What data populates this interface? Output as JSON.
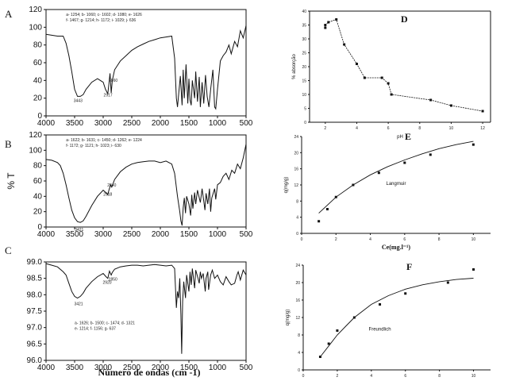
{
  "chart_data": [
    {
      "id": "A",
      "type": "line",
      "panel_letter": "A",
      "xlim": [
        4000,
        500
      ],
      "xticks": [
        "4000",
        "3500",
        "3000",
        "2500",
        "2000",
        "1500",
        "1000",
        "500"
      ],
      "ylim": [
        0,
        120
      ],
      "yticks": [
        "0",
        "20",
        "40",
        "60",
        "80",
        "100",
        "120"
      ],
      "annotation_lines": [
        "a- 1254; b- 1060; c- 1602; d- 1080; e- 1626",
        "f- 1467; g- 1214; h- 1172; i- 1029; j- 636"
      ],
      "peak_labels": [
        {
          "text": "3443",
          "x": 3440,
          "y": 22
        },
        {
          "text": "2917",
          "x": 2915,
          "y": 28
        },
        {
          "text": "2860",
          "x": 2825,
          "y": 45
        }
      ],
      "series": [
        {
          "x": [
            4000,
            3900,
            3800,
            3700,
            3650,
            3600,
            3550,
            3500,
            3450,
            3400,
            3350,
            3300,
            3200,
            3100,
            3000,
            2960,
            2920,
            2900,
            2880,
            2860,
            2840,
            2800,
            2700,
            2600,
            2500,
            2400,
            2300,
            2200,
            2100,
            2000,
            1900,
            1800,
            1750,
            1720,
            1700,
            1650,
            1620,
            1600,
            1580,
            1550,
            1520,
            1500,
            1480,
            1460,
            1440,
            1400,
            1380,
            1350,
            1320,
            1300,
            1270,
            1240,
            1210,
            1180,
            1150,
            1120,
            1080,
            1050,
            1030,
            1000,
            950,
            900,
            850,
            800,
            760,
            700,
            650,
            600,
            550,
            500
          ],
          "y": [
            92,
            91,
            90,
            90,
            82,
            68,
            50,
            30,
            22,
            22,
            24,
            30,
            38,
            42,
            38,
            30,
            25,
            36,
            48,
            26,
            40,
            52,
            62,
            68,
            74,
            78,
            81,
            84,
            86,
            88,
            89,
            90,
            65,
            20,
            10,
            45,
            12,
            52,
            20,
            58,
            14,
            42,
            18,
            12,
            40,
            20,
            50,
            16,
            44,
            10,
            38,
            14,
            46,
            22,
            10,
            30,
            52,
            10,
            8,
            30,
            62,
            68,
            72,
            80,
            70,
            84,
            78,
            96,
            88,
            102
          ]
        }
      ]
    },
    {
      "id": "B",
      "type": "line",
      "panel_letter": "B",
      "xlim": [
        4000,
        500
      ],
      "xticks": [
        "4000",
        "3500",
        "3000",
        "2500",
        "2000",
        "1500",
        "1000",
        "500"
      ],
      "ylim": [
        0,
        120
      ],
      "yticks": [
        "0",
        "20",
        "40",
        "60",
        "80",
        "100",
        "120"
      ],
      "ylabel": "% T",
      "annotation_lines": [
        "a- 1622; b- 1631; c- 1450; d- 1262; e- 1224",
        "f- 1172; g- 1121; h- 1023; i- 630"
      ],
      "peak_labels": [
        {
          "text": "3421",
          "x": 3420,
          "y": 2
        },
        {
          "text": "2840",
          "x": 2850,
          "y": 60
        },
        {
          "text": "2918",
          "x": 2920,
          "y": 48
        }
      ],
      "series": [
        {
          "x": [
            4000,
            3900,
            3800,
            3750,
            3700,
            3650,
            3600,
            3550,
            3500,
            3450,
            3400,
            3350,
            3300,
            3200,
            3100,
            3000,
            2940,
            2920,
            2900,
            2870,
            2850,
            2830,
            2800,
            2700,
            2600,
            2500,
            2400,
            2300,
            2200,
            2100,
            2000,
            1900,
            1800,
            1750,
            1700,
            1660,
            1640,
            1620,
            1600,
            1580,
            1560,
            1540,
            1500,
            1470,
            1450,
            1430,
            1400,
            1380,
            1350,
            1300,
            1270,
            1240,
            1220,
            1200,
            1170,
            1140,
            1120,
            1100,
            1050,
            1030,
            1000,
            950,
            900,
            850,
            800,
            750,
            700,
            650,
            600,
            550,
            500
          ],
          "y": [
            88,
            87,
            84,
            80,
            70,
            55,
            38,
            22,
            12,
            7,
            6,
            8,
            14,
            28,
            40,
            48,
            44,
            42,
            48,
            55,
            52,
            56,
            62,
            72,
            78,
            82,
            84,
            85,
            86,
            86,
            84,
            86,
            82,
            70,
            40,
            20,
            8,
            2,
            25,
            38,
            18,
            40,
            30,
            15,
            42,
            24,
            45,
            30,
            48,
            32,
            50,
            34,
            22,
            44,
            30,
            50,
            20,
            38,
            50,
            36,
            55,
            58,
            66,
            70,
            62,
            74,
            70,
            82,
            76,
            90,
            108
          ]
        }
      ]
    },
    {
      "id": "C",
      "type": "line",
      "panel_letter": "C",
      "xlim": [
        4000,
        500
      ],
      "xticks": [
        "4000",
        "3500",
        "3000",
        "2500",
        "2000",
        "1500",
        "1000",
        "500"
      ],
      "ylim": [
        96.0,
        99.0
      ],
      "yticks": [
        "96.0",
        "96.5",
        "97.0",
        "97.5",
        "98.0",
        "98.5",
        "99.0"
      ],
      "annotation_lines": [
        "a- 1626; b- 1500; c- 1474; d- 1321",
        "e- 1214; f- 1156; g- 637"
      ],
      "peak_labels": [
        {
          "text": "3421",
          "x": 3430,
          "y": 97.85
        },
        {
          "text": "2920",
          "x": 2930,
          "y": 98.5
        },
        {
          "text": "2850",
          "x": 2830,
          "y": 98.6
        }
      ],
      "series": [
        {
          "x": [
            4000,
            3900,
            3800,
            3700,
            3650,
            3600,
            3550,
            3500,
            3450,
            3400,
            3350,
            3300,
            3200,
            3100,
            3000,
            2950,
            2920,
            2890,
            2860,
            2840,
            2800,
            2700,
            2600,
            2500,
            2400,
            2300,
            2200,
            2100,
            2000,
            1900,
            1800,
            1750,
            1720,
            1700,
            1680,
            1660,
            1640,
            1626,
            1610,
            1590,
            1560,
            1540,
            1500,
            1480,
            1460,
            1440,
            1400,
            1380,
            1340,
            1320,
            1300,
            1280,
            1250,
            1214,
            1200,
            1170,
            1156,
            1120,
            1090,
            1050,
            1000,
            950,
            900,
            850,
            800,
            760,
            700,
            660,
            637,
            600,
            550,
            500
          ],
          "y": [
            98.95,
            98.9,
            98.85,
            98.7,
            98.6,
            98.35,
            98.1,
            97.95,
            97.9,
            97.95,
            98.05,
            98.2,
            98.4,
            98.55,
            98.65,
            98.55,
            98.5,
            98.72,
            98.6,
            98.68,
            98.78,
            98.85,
            98.88,
            98.9,
            98.9,
            98.88,
            98.9,
            98.92,
            98.9,
            98.88,
            98.9,
            98.8,
            97.6,
            98.1,
            97.9,
            98.5,
            97.4,
            96.2,
            97.8,
            98.4,
            97.9,
            98.6,
            98.1,
            98.7,
            98.3,
            98.8,
            98.2,
            98.75,
            98.5,
            98.35,
            98.7,
            98.5,
            98.65,
            98.1,
            98.5,
            98.7,
            98.15,
            98.6,
            98.75,
            98.5,
            98.6,
            98.4,
            98.3,
            98.55,
            98.4,
            98.3,
            98.35,
            98.6,
            98.7,
            98.45,
            98.75,
            98.6
          ]
        }
      ]
    },
    {
      "id": "D",
      "type": "line",
      "panel_letter": "D",
      "xlabel": "pH",
      "ylabel": "% absorção",
      "xlim": [
        1,
        12.5
      ],
      "xticks": [
        "2",
        "4",
        "6",
        "8",
        "10",
        "12"
      ],
      "ylim": [
        0,
        40
      ],
      "yticks": [
        "0",
        "5",
        "10",
        "15",
        "20",
        "25",
        "30",
        "35",
        "40"
      ],
      "series": [
        {
          "x": [
            2,
            2,
            2.2,
            2.7,
            3.2,
            4,
            4.5,
            5.6,
            6,
            6.2,
            8.7,
            10,
            12
          ],
          "y": [
            34,
            35,
            36,
            37,
            28,
            21,
            16,
            16,
            14,
            10,
            8,
            6,
            4
          ]
        }
      ]
    },
    {
      "id": "E",
      "type": "scatter",
      "panel_letter": "E",
      "xlabel": "Ce(mg.l⁻¹)",
      "ylabel": "q(mg/g)",
      "curve_label": "Langmuir",
      "xlim": [
        0,
        11
      ],
      "xticks": [
        "0",
        "2",
        "4",
        "6",
        "8",
        "10"
      ],
      "ylim": [
        0,
        24
      ],
      "yticks": [
        "0",
        "4",
        "8",
        "12",
        "16",
        "20",
        "24"
      ],
      "points": {
        "x": [
          1,
          1.5,
          2,
          3,
          4.5,
          6,
          7.5,
          10
        ],
        "y": [
          3,
          6,
          9,
          12,
          15,
          17.5,
          19.5,
          22
        ]
      },
      "fit": {
        "x": [
          1,
          2,
          3,
          4,
          5,
          6,
          7,
          8,
          9,
          10
        ],
        "y": [
          5,
          9,
          12,
          14.5,
          16.5,
          18.2,
          19.7,
          21,
          22,
          22.8
        ]
      }
    },
    {
      "id": "F",
      "type": "scatter",
      "panel_letter": "F",
      "xlabel": "Ce(mg.l⁻¹)",
      "ylabel": "q(mg/g)",
      "curve_label": "Freundlich",
      "xlim": [
        0,
        11
      ],
      "xticks": [
        "0",
        "2",
        "4",
        "6",
        "8",
        "10"
      ],
      "ylim": [
        0,
        24
      ],
      "yticks": [
        "0",
        "4",
        "8",
        "12",
        "16",
        "20",
        "24"
      ],
      "points": {
        "x": [
          1,
          1.5,
          2,
          3,
          4.5,
          6,
          8.5,
          10
        ],
        "y": [
          3,
          6,
          9,
          12,
          15,
          17.5,
          20,
          23
        ]
      },
      "fit": {
        "x": [
          1,
          1.5,
          2,
          2.5,
          3,
          4,
          5,
          6,
          7,
          8,
          9,
          10
        ],
        "y": [
          3,
          5.5,
          8,
          10,
          12,
          15,
          17,
          18.5,
          19.5,
          20.2,
          20.7,
          21
        ]
      }
    }
  ],
  "figure": {
    "xaxis_label_main": "Número de ondas (cm -1)",
    "colors": {
      "line": "#111111",
      "axis": "#111111"
    }
  }
}
